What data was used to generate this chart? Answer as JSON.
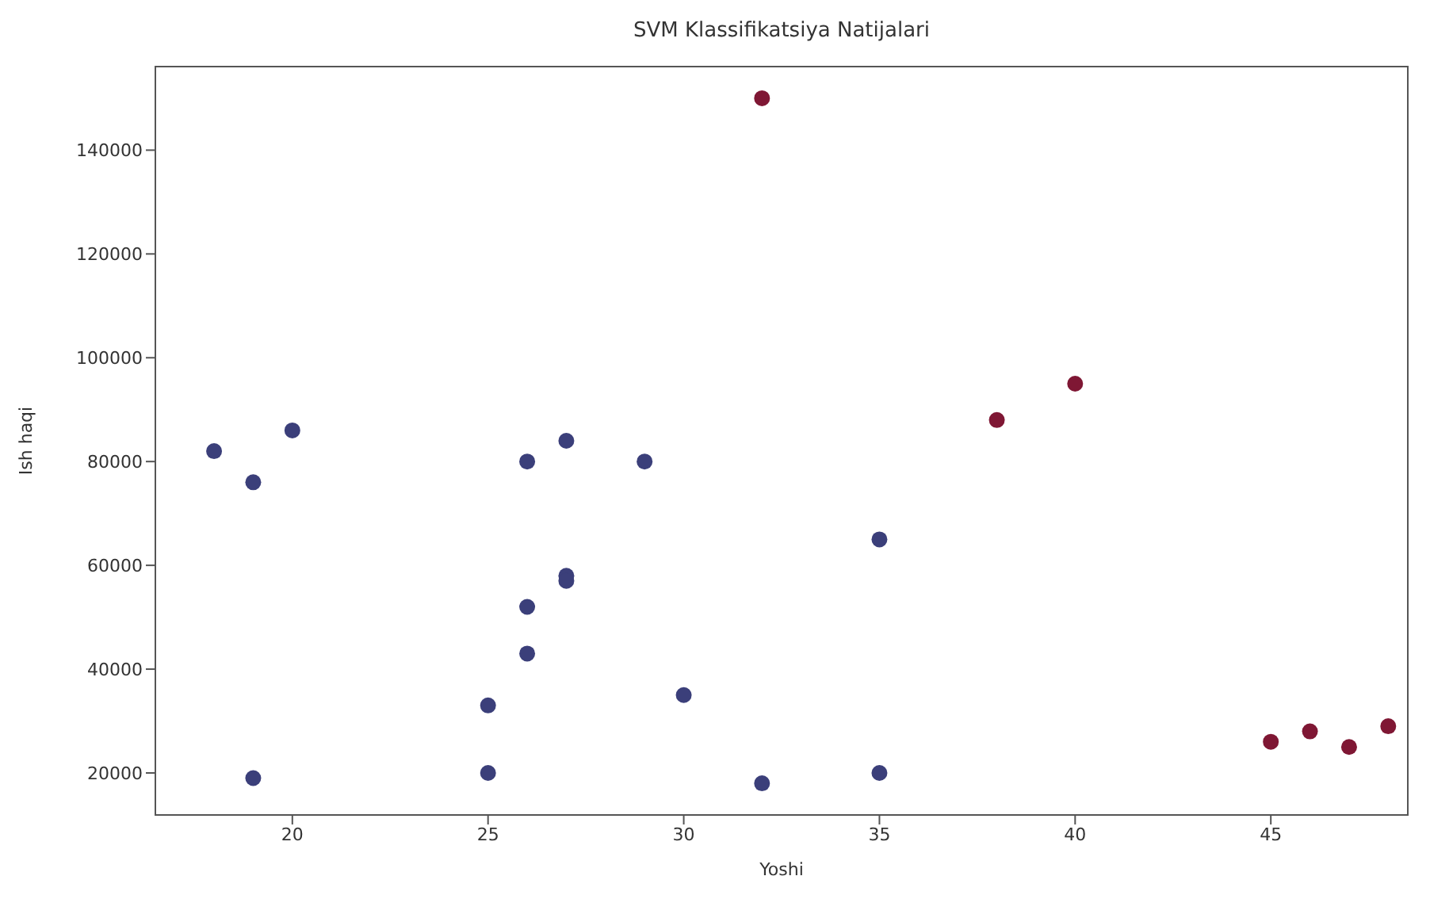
{
  "chart_data": {
    "type": "scatter",
    "title": "SVM Klassifikatsiya Natijalari",
    "xlabel": "Yoshi",
    "ylabel": "Ish haqi",
    "marker": "circle",
    "legend": false,
    "grid": false,
    "xlim": [
      16.5,
      48.5
    ],
    "xticks": [
      20,
      25,
      30,
      35,
      40,
      45
    ],
    "ylim": [
      11900,
      156100
    ],
    "yticks": [
      20000,
      40000,
      60000,
      80000,
      100000,
      120000,
      140000
    ],
    "series": [
      {
        "color": "#3b3f7a",
        "x": [
          18,
          19,
          20,
          19,
          25,
          25,
          26,
          27,
          29,
          26,
          26,
          27,
          27,
          30,
          32,
          35,
          35
        ],
        "values": [
          82000,
          76000,
          86000,
          19000,
          33000,
          20000,
          80000,
          84000,
          80000,
          52000,
          43000,
          58000,
          57000,
          35000,
          18000,
          65000,
          20000
        ]
      },
      {
        "color": "#7f1734",
        "x": [
          32,
          38,
          40,
          45,
          46,
          47,
          48
        ],
        "values": [
          150000,
          88000,
          95000,
          26000,
          28000,
          25000,
          29000
        ]
      }
    ]
  }
}
